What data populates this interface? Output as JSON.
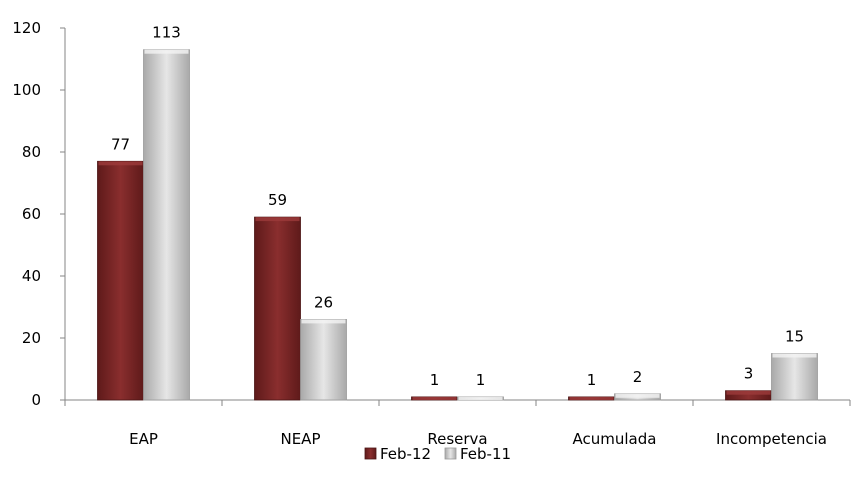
{
  "chart_data": {
    "type": "bar",
    "title": "",
    "xlabel": "",
    "ylabel": "",
    "categories": [
      "EAP",
      "NEAP",
      "Reserva",
      "Acumulada",
      "Incompetencia"
    ],
    "series": [
      {
        "name": "Feb-12",
        "values": [
          77,
          59,
          1,
          1,
          3
        ]
      },
      {
        "name": "Feb-11",
        "values": [
          113,
          26,
          1,
          2,
          15
        ]
      }
    ],
    "ylim": [
      0,
      120
    ],
    "yticks": [
      0,
      20,
      40,
      60,
      80,
      100,
      120
    ],
    "grid": false,
    "legend_position": "bottom",
    "colors": {
      "Feb-12": "#7b2626",
      "Feb-11": "#cfcfcf"
    }
  }
}
